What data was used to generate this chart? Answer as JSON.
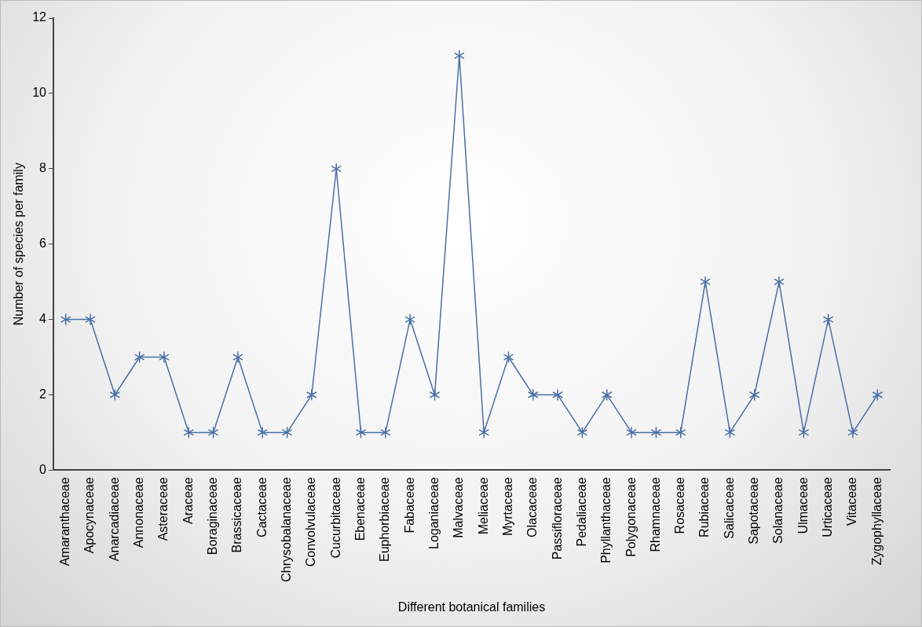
{
  "chart_data": {
    "type": "line",
    "xlabel": "Different botanical families",
    "ylabel": "Number of species per family",
    "categories": [
      "Amaranthaceae",
      "Apocynaceae",
      "Anarcadiaceae",
      "Annonaceae",
      "Asteraceae",
      "Araceae",
      "Boraginaceae",
      "Brassicaceae",
      "Cactaceae",
      "Chrysobalanaceae",
      "Convolvulaceae",
      "Cucurbitaceae",
      "Ebenaceae",
      "Euphorbiaceae",
      "Fabaceae",
      "Loganiaceae",
      "Malvaceae",
      "Meliaceae",
      "Myrtaceae",
      "Olacaceae",
      "Passifloraceae",
      "Pedaliaceae",
      "Phyllanthaceae",
      "Polygonaceae",
      "Rhamnaceae",
      "Rosaceae",
      "Rubiaceae",
      "Salicaceae",
      "Sapotaceae",
      "Solanaceae",
      "Ulmaceae",
      "Urticaceae",
      "Vitaceae",
      "Zygophyllaceae"
    ],
    "series": [
      {
        "color": "#4a6fa5",
        "values": [
          4,
          4,
          2,
          3,
          3,
          1,
          1,
          3,
          1,
          1,
          2,
          8,
          1,
          1,
          4,
          2,
          11,
          1,
          3,
          2,
          2,
          1,
          2,
          1,
          1,
          1,
          5,
          1,
          2,
          5,
          1,
          4,
          1,
          2
        ]
      }
    ],
    "ylim": [
      0,
      12
    ],
    "yticks": [
      0,
      2,
      4,
      6,
      8,
      10,
      12
    ],
    "grid": false,
    "legend": false,
    "marker": "cross",
    "line_style": "solid"
  }
}
